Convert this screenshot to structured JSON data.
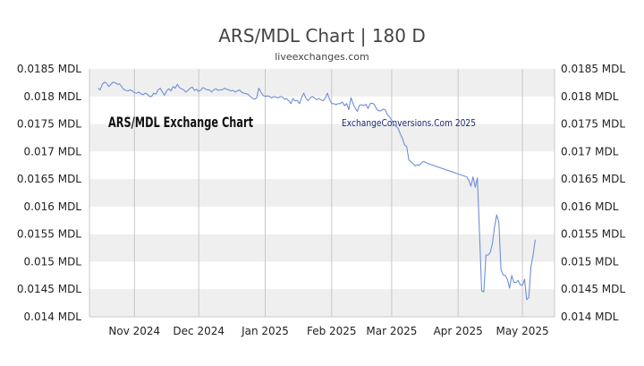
{
  "title": "ARS/MDL Chart | 180 D",
  "subtitle": "liveexchanges.com",
  "watermarks": {
    "left": "ARS/MDL Exchange Chart",
    "right": "ExchangeConversions.Com 2025"
  },
  "colors": {
    "line": "#6f8fd8",
    "band": "#efefef",
    "grid": "#c8c8c8",
    "axis_text": "#222222",
    "title_text": "#444444",
    "watermark_right": "#1a2a7a",
    "watermark_left": "#111111"
  },
  "chart_data": {
    "type": "line",
    "title": "ARS/MDL Chart | 180 D",
    "subtitle": "liveexchanges.com",
    "xlabel": "",
    "ylabel": "",
    "ylim": [
      0.014,
      0.0185
    ],
    "yticks": [
      0.014,
      0.0145,
      0.015,
      0.0155,
      0.016,
      0.0165,
      0.017,
      0.0175,
      0.018,
      0.0185
    ],
    "ytick_labels": [
      "0.014 MDL",
      "0.0145 MDL",
      "0.015 MDL",
      "0.0155 MDL",
      "0.016 MDL",
      "0.0165 MDL",
      "0.017 MDL",
      "0.0175 MDL",
      "0.018 MDL",
      "0.0185 MDL"
    ],
    "xlim": [
      "2024-10-11",
      "2025-05-16"
    ],
    "xticks": [
      {
        "date": "2024-11-01",
        "label": "Nov 2024"
      },
      {
        "date": "2024-12-01",
        "label": "Dec 2024"
      },
      {
        "date": "2025-01-01",
        "label": "Jan 2025"
      },
      {
        "date": "2025-02-01",
        "label": "Feb 2025"
      },
      {
        "date": "2025-03-01",
        "label": "Mar 2025"
      },
      {
        "date": "2025-04-01",
        "label": "Apr 2025"
      },
      {
        "date": "2025-05-01",
        "label": "May 2025"
      }
    ],
    "grid": "vertical",
    "legend": "none",
    "series": [
      {
        "values": [
          [
            "2024-10-15",
            0.01815
          ],
          [
            "2024-10-16",
            0.01812
          ],
          [
            "2024-10-17",
            0.01822
          ],
          [
            "2024-10-18",
            0.01826
          ],
          [
            "2024-10-19",
            0.01824
          ],
          [
            "2024-10-20",
            0.01818
          ],
          [
            "2024-10-21",
            0.01822
          ],
          [
            "2024-10-22",
            0.01826
          ],
          [
            "2024-10-23",
            0.01825
          ],
          [
            "2024-10-24",
            0.01822
          ],
          [
            "2024-10-25",
            0.01823
          ],
          [
            "2024-10-26",
            0.01818
          ],
          [
            "2024-10-27",
            0.01813
          ],
          [
            "2024-10-28",
            0.01811
          ],
          [
            "2024-10-29",
            0.0181
          ],
          [
            "2024-10-30",
            0.01812
          ],
          [
            "2024-10-31",
            0.0181
          ],
          [
            "2024-11-01",
            0.01807
          ],
          [
            "2024-11-02",
            0.01806
          ],
          [
            "2024-11-03",
            0.01808
          ],
          [
            "2024-11-04",
            0.01805
          ],
          [
            "2024-11-05",
            0.01803
          ],
          [
            "2024-11-06",
            0.01806
          ],
          [
            "2024-11-07",
            0.01804
          ],
          [
            "2024-11-08",
            0.018
          ],
          [
            "2024-11-09",
            0.018
          ],
          [
            "2024-11-10",
            0.01806
          ],
          [
            "2024-11-11",
            0.01804
          ],
          [
            "2024-11-12",
            0.01812
          ],
          [
            "2024-11-13",
            0.01815
          ],
          [
            "2024-11-14",
            0.01808
          ],
          [
            "2024-11-15",
            0.01802
          ],
          [
            "2024-11-16",
            0.0181
          ],
          [
            "2024-11-17",
            0.01814
          ],
          [
            "2024-11-18",
            0.0181
          ],
          [
            "2024-11-19",
            0.01818
          ],
          [
            "2024-11-20",
            0.01815
          ],
          [
            "2024-11-21",
            0.01822
          ],
          [
            "2024-11-22",
            0.01816
          ],
          [
            "2024-11-23",
            0.01814
          ],
          [
            "2024-11-24",
            0.01812
          ],
          [
            "2024-11-25",
            0.01808
          ],
          [
            "2024-11-26",
            0.01811
          ],
          [
            "2024-11-27",
            0.01815
          ],
          [
            "2024-11-28",
            0.01817
          ],
          [
            "2024-11-29",
            0.01811
          ],
          [
            "2024-11-30",
            0.01813
          ],
          [
            "2024-12-01",
            0.01809
          ],
          [
            "2024-12-02",
            0.01812
          ],
          [
            "2024-12-03",
            0.01816
          ],
          [
            "2024-12-04",
            0.01814
          ],
          [
            "2024-12-05",
            0.01812
          ],
          [
            "2024-12-06",
            0.01812
          ],
          [
            "2024-12-07",
            0.01808
          ],
          [
            "2024-12-08",
            0.01812
          ],
          [
            "2024-12-09",
            0.01814
          ],
          [
            "2024-12-10",
            0.01811
          ],
          [
            "2024-12-11",
            0.01812
          ],
          [
            "2024-12-12",
            0.01812
          ],
          [
            "2024-12-13",
            0.01815
          ],
          [
            "2024-12-14",
            0.01813
          ],
          [
            "2024-12-15",
            0.01812
          ],
          [
            "2024-12-16",
            0.0181
          ],
          [
            "2024-12-17",
            0.01811
          ],
          [
            "2024-12-18",
            0.01808
          ],
          [
            "2024-12-19",
            0.0181
          ],
          [
            "2024-12-20",
            0.01812
          ],
          [
            "2024-12-21",
            0.01808
          ],
          [
            "2024-12-22",
            0.01806
          ],
          [
            "2024-12-23",
            0.01805
          ],
          [
            "2024-12-24",
            0.01804
          ],
          [
            "2024-12-25",
            0.018
          ],
          [
            "2024-12-26",
            0.01797
          ],
          [
            "2024-12-27",
            0.01795
          ],
          [
            "2024-12-28",
            0.01797
          ],
          [
            "2024-12-29",
            0.01815
          ],
          [
            "2024-12-30",
            0.01808
          ],
          [
            "2024-12-31",
            0.01802
          ],
          [
            "2025-01-01",
            0.018
          ],
          [
            "2025-01-02",
            0.01801
          ],
          [
            "2025-01-03",
            0.018
          ],
          [
            "2025-01-04",
            0.01797
          ],
          [
            "2025-01-05",
            0.018
          ],
          [
            "2025-01-06",
            0.01799
          ],
          [
            "2025-01-07",
            0.01797
          ],
          [
            "2025-01-08",
            0.018
          ],
          [
            "2025-01-09",
            0.01799
          ],
          [
            "2025-01-10",
            0.01795
          ],
          [
            "2025-01-11",
            0.01796
          ],
          [
            "2025-01-12",
            0.01792
          ],
          [
            "2025-01-13",
            0.01787
          ],
          [
            "2025-01-14",
            0.01796
          ],
          [
            "2025-01-15",
            0.01792
          ],
          [
            "2025-01-16",
            0.01793
          ],
          [
            "2025-01-17",
            0.01787
          ],
          [
            "2025-01-18",
            0.01798
          ],
          [
            "2025-01-19",
            0.01806
          ],
          [
            "2025-01-20",
            0.01797
          ],
          [
            "2025-01-21",
            0.01792
          ],
          [
            "2025-01-22",
            0.01797
          ],
          [
            "2025-01-23",
            0.018
          ],
          [
            "2025-01-24",
            0.01797
          ],
          [
            "2025-01-25",
            0.01794
          ],
          [
            "2025-01-26",
            0.01796
          ],
          [
            "2025-01-27",
            0.01794
          ],
          [
            "2025-01-28",
            0.01792
          ],
          [
            "2025-01-29",
            0.01797
          ],
          [
            "2025-01-30",
            0.01806
          ],
          [
            "2025-01-31",
            0.01795
          ],
          [
            "2025-02-01",
            0.01787
          ],
          [
            "2025-02-02",
            0.01787
          ],
          [
            "2025-02-03",
            0.01785
          ],
          [
            "2025-02-04",
            0.01787
          ],
          [
            "2025-02-05",
            0.01787
          ],
          [
            "2025-02-06",
            0.0179
          ],
          [
            "2025-02-07",
            0.01783
          ],
          [
            "2025-02-08",
            0.01787
          ],
          [
            "2025-02-09",
            0.01776
          ],
          [
            "2025-02-10",
            0.01798
          ],
          [
            "2025-02-11",
            0.01787
          ],
          [
            "2025-02-12",
            0.01779
          ],
          [
            "2025-02-13",
            0.01773
          ],
          [
            "2025-02-14",
            0.01784
          ],
          [
            "2025-02-15",
            0.01785
          ],
          [
            "2025-02-16",
            0.01783
          ],
          [
            "2025-02-17",
            0.01786
          ],
          [
            "2025-02-18",
            0.01778
          ],
          [
            "2025-02-19",
            0.01787
          ],
          [
            "2025-02-20",
            0.01788
          ],
          [
            "2025-02-21",
            0.01785
          ],
          [
            "2025-02-22",
            0.01777
          ],
          [
            "2025-02-23",
            0.01774
          ],
          [
            "2025-02-24",
            0.01774
          ],
          [
            "2025-02-25",
            0.01777
          ],
          [
            "2025-02-26",
            0.01776
          ],
          [
            "2025-02-27",
            0.01767
          ],
          [
            "2025-02-28",
            0.01763
          ],
          [
            "2025-03-01",
            0.01757
          ],
          [
            "2025-03-02",
            0.01749
          ],
          [
            "2025-03-03",
            0.01746
          ],
          [
            "2025-03-04",
            0.01742
          ],
          [
            "2025-03-05",
            0.01732
          ],
          [
            "2025-03-06",
            0.01724
          ],
          [
            "2025-03-07",
            0.01712
          ],
          [
            "2025-03-08",
            0.01709
          ],
          [
            "2025-03-09",
            0.01685
          ],
          [
            "2025-03-10",
            0.01681
          ],
          [
            "2025-03-11",
            0.01678
          ],
          [
            "2025-03-12",
            0.01674
          ],
          [
            "2025-03-13",
            0.01676
          ],
          [
            "2025-03-14",
            0.01675
          ],
          [
            "2025-03-15",
            0.0168
          ],
          [
            "2025-03-16",
            0.01682
          ],
          [
            "2025-03-17",
            0.0168
          ],
          [
            "2025-03-18",
            0.01678
          ],
          [
            "2025-04-05",
            0.01654
          ],
          [
            "2025-04-06",
            0.01648
          ],
          [
            "2025-04-07",
            0.01637
          ],
          [
            "2025-04-08",
            0.01654
          ],
          [
            "2025-04-09",
            0.01635
          ],
          [
            "2025-04-10",
            0.01652
          ],
          [
            "2025-04-11",
            0.01552
          ],
          [
            "2025-04-12",
            0.01447
          ],
          [
            "2025-04-13",
            0.01445
          ],
          [
            "2025-04-14",
            0.01512
          ],
          [
            "2025-04-15",
            0.01512
          ],
          [
            "2025-04-16",
            0.01517
          ],
          [
            "2025-04-17",
            0.01533
          ],
          [
            "2025-04-18",
            0.01563
          ],
          [
            "2025-04-19",
            0.01585
          ],
          [
            "2025-04-20",
            0.01572
          ],
          [
            "2025-04-21",
            0.01486
          ],
          [
            "2025-04-22",
            0.01476
          ],
          [
            "2025-04-23",
            0.01475
          ],
          [
            "2025-04-24",
            0.01468
          ],
          [
            "2025-04-25",
            0.01452
          ],
          [
            "2025-04-26",
            0.01475
          ],
          [
            "2025-04-27",
            0.01463
          ],
          [
            "2025-04-28",
            0.01462
          ],
          [
            "2025-04-29",
            0.01466
          ],
          [
            "2025-04-30",
            0.01458
          ],
          [
            "2025-05-01",
            0.01457
          ],
          [
            "2025-05-02",
            0.01468
          ],
          [
            "2025-05-03",
            0.01431
          ],
          [
            "2025-05-04",
            0.01435
          ],
          [
            "2025-05-05",
            0.01491
          ],
          [
            "2025-05-06",
            0.01512
          ],
          [
            "2025-05-07",
            0.0154
          ]
        ]
      }
    ]
  }
}
